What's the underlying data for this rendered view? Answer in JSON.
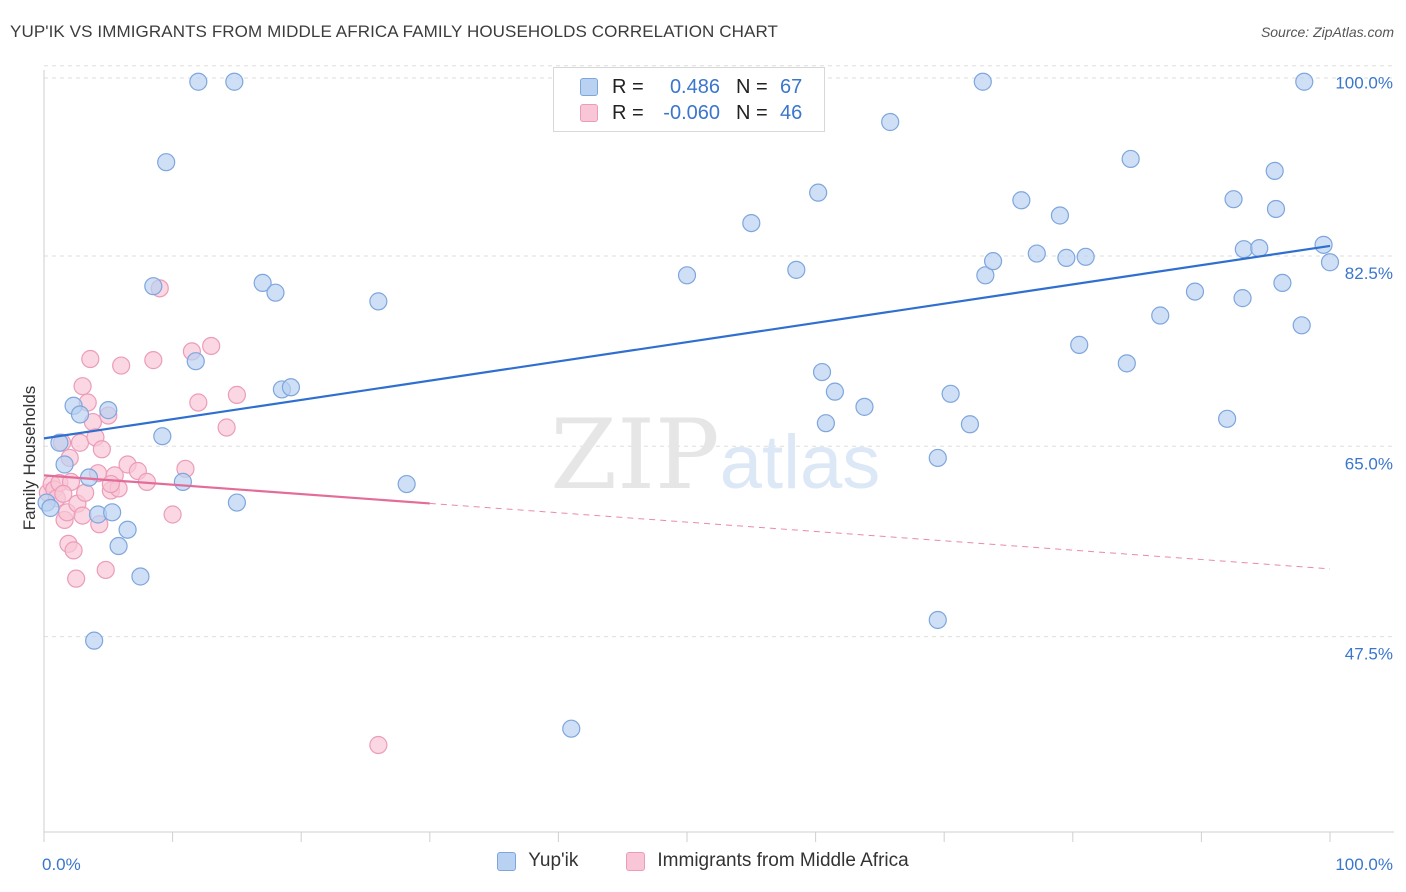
{
  "title": "YUP'IK VS IMMIGRANTS FROM MIDDLE AFRICA FAMILY HOUSEHOLDS CORRELATION CHART",
  "source": "Source: ZipAtlas.com",
  "watermark": {
    "zip": "ZIP",
    "atlas": "atlas"
  },
  "legend": {
    "rows": [
      {
        "r_label": "R =",
        "r_value": "0.486",
        "n_label": "N =",
        "n_value": "67"
      },
      {
        "r_label": "R =",
        "r_value": "-0.060",
        "n_label": "N =",
        "n_value": "46"
      }
    ]
  },
  "colors": {
    "blue_fill": "#b9d2f2",
    "blue_stroke": "#7ea6dd",
    "blue_line": "#2f6fcf",
    "pink_fill": "#f8c6d6",
    "pink_stroke": "#ec9cb8",
    "pink_line": "#e46c98",
    "tick_text": "#3a76cc",
    "grid": "#dedede"
  },
  "chart_data": {
    "type": "scatter",
    "title": "YUP'IK VS IMMIGRANTS FROM MIDDLE AFRICA FAMILY HOUSEHOLDS CORRELATION CHART",
    "xlabel": "",
    "ylabel": "Family Households",
    "xlim": [
      0,
      100
    ],
    "ylim": [
      31,
      102
    ],
    "x_tick_labels": [
      "0.0%",
      "100.0%"
    ],
    "y_ticks": [
      47.5,
      65.0,
      82.5,
      100.0
    ],
    "y_tick_labels": [
      "47.5%",
      "65.0%",
      "82.5%",
      "100.0%"
    ],
    "legend_position": "top-center",
    "series": [
      {
        "name": "Yup'ik",
        "color": "blue",
        "trend": {
          "x": [
            0,
            100
          ],
          "y": [
            67.2,
            84.9
          ],
          "dashed_after": null
        },
        "points": [
          {
            "x": 0.2,
            "y": 61.3
          },
          {
            "x": 1.2,
            "y": 66.8
          },
          {
            "x": 1.6,
            "y": 64.8
          },
          {
            "x": 2.3,
            "y": 70.2
          },
          {
            "x": 2.8,
            "y": 69.4
          },
          {
            "x": 3.5,
            "y": 63.6
          },
          {
            "x": 5.0,
            "y": 69.8
          },
          {
            "x": 4.2,
            "y": 60.2
          },
          {
            "x": 5.3,
            "y": 60.4
          },
          {
            "x": 5.8,
            "y": 57.3
          },
          {
            "x": 6.5,
            "y": 58.8
          },
          {
            "x": 7.5,
            "y": 54.5
          },
          {
            "x": 3.9,
            "y": 48.6
          },
          {
            "x": 8.5,
            "y": 81.2
          },
          {
            "x": 9.2,
            "y": 67.4
          },
          {
            "x": 9.5,
            "y": 92.6
          },
          {
            "x": 10.8,
            "y": 63.2
          },
          {
            "x": 11.8,
            "y": 74.3
          },
          {
            "x": 12.0,
            "y": 100.0
          },
          {
            "x": 14.8,
            "y": 100.0
          },
          {
            "x": 15.0,
            "y": 61.3
          },
          {
            "x": 17.0,
            "y": 81.5
          },
          {
            "x": 18.0,
            "y": 80.6
          },
          {
            "x": 18.5,
            "y": 71.7
          },
          {
            "x": 19.2,
            "y": 71.9
          },
          {
            "x": 26.0,
            "y": 79.8
          },
          {
            "x": 28.2,
            "y": 63.0
          },
          {
            "x": 41.0,
            "y": 40.5
          },
          {
            "x": 50.0,
            "y": 82.2
          },
          {
            "x": 55.0,
            "y": 87.0
          },
          {
            "x": 58.5,
            "y": 82.7
          },
          {
            "x": 60.2,
            "y": 89.8
          },
          {
            "x": 60.5,
            "y": 73.3
          },
          {
            "x": 60.8,
            "y": 68.6
          },
          {
            "x": 61.5,
            "y": 71.5
          },
          {
            "x": 63.8,
            "y": 70.1
          },
          {
            "x": 65.8,
            "y": 96.3
          },
          {
            "x": 69.5,
            "y": 65.4
          },
          {
            "x": 69.5,
            "y": 50.5
          },
          {
            "x": 70.5,
            "y": 71.3
          },
          {
            "x": 72.0,
            "y": 68.5
          },
          {
            "x": 73.0,
            "y": 100.0
          },
          {
            "x": 73.2,
            "y": 82.2
          },
          {
            "x": 73.8,
            "y": 83.5
          },
          {
            "x": 76.0,
            "y": 89.1
          },
          {
            "x": 77.2,
            "y": 84.2
          },
          {
            "x": 79.0,
            "y": 87.7
          },
          {
            "x": 79.5,
            "y": 83.8
          },
          {
            "x": 80.5,
            "y": 75.8
          },
          {
            "x": 81.0,
            "y": 83.9
          },
          {
            "x": 84.5,
            "y": 92.9
          },
          {
            "x": 84.2,
            "y": 74.1
          },
          {
            "x": 86.8,
            "y": 78.5
          },
          {
            "x": 89.5,
            "y": 80.7
          },
          {
            "x": 92.0,
            "y": 69.0
          },
          {
            "x": 92.5,
            "y": 89.2
          },
          {
            "x": 93.3,
            "y": 84.6
          },
          {
            "x": 93.2,
            "y": 80.1
          },
          {
            "x": 94.5,
            "y": 84.7
          },
          {
            "x": 95.7,
            "y": 91.8
          },
          {
            "x": 95.8,
            "y": 88.3
          },
          {
            "x": 96.3,
            "y": 81.5
          },
          {
            "x": 97.8,
            "y": 77.6
          },
          {
            "x": 98.0,
            "y": 100.0
          },
          {
            "x": 99.5,
            "y": 85.0
          },
          {
            "x": 100.0,
            "y": 83.4
          },
          {
            "x": 0.5,
            "y": 60.8
          }
        ]
      },
      {
        "name": "Immigrants from Middle Africa",
        "color": "pink",
        "trend": {
          "x": [
            0,
            100
          ],
          "y": [
            63.8,
            55.2
          ],
          "dashed_after": 30
        },
        "points": [
          {
            "x": 0.3,
            "y": 62.2
          },
          {
            "x": 0.6,
            "y": 63.0
          },
          {
            "x": 0.8,
            "y": 62.5
          },
          {
            "x": 1.0,
            "y": 61.7
          },
          {
            "x": 1.2,
            "y": 63.1
          },
          {
            "x": 1.4,
            "y": 66.8
          },
          {
            "x": 1.6,
            "y": 59.7
          },
          {
            "x": 1.8,
            "y": 60.4
          },
          {
            "x": 1.9,
            "y": 57.5
          },
          {
            "x": 2.0,
            "y": 65.4
          },
          {
            "x": 2.1,
            "y": 63.2
          },
          {
            "x": 2.3,
            "y": 56.9
          },
          {
            "x": 2.5,
            "y": 54.3
          },
          {
            "x": 2.6,
            "y": 61.2
          },
          {
            "x": 2.8,
            "y": 66.8
          },
          {
            "x": 3.0,
            "y": 72.0
          },
          {
            "x": 3.2,
            "y": 62.2
          },
          {
            "x": 3.4,
            "y": 70.5
          },
          {
            "x": 3.6,
            "y": 74.5
          },
          {
            "x": 3.8,
            "y": 68.7
          },
          {
            "x": 4.0,
            "y": 67.3
          },
          {
            "x": 4.2,
            "y": 64.0
          },
          {
            "x": 4.3,
            "y": 59.3
          },
          {
            "x": 4.5,
            "y": 66.2
          },
          {
            "x": 4.8,
            "y": 55.1
          },
          {
            "x": 5.0,
            "y": 69.3
          },
          {
            "x": 5.2,
            "y": 62.4
          },
          {
            "x": 5.5,
            "y": 63.8
          },
          {
            "x": 5.8,
            "y": 62.6
          },
          {
            "x": 6.0,
            "y": 73.9
          },
          {
            "x": 6.5,
            "y": 64.8
          },
          {
            "x": 7.3,
            "y": 64.2
          },
          {
            "x": 8.0,
            "y": 63.2
          },
          {
            "x": 8.5,
            "y": 74.4
          },
          {
            "x": 9.0,
            "y": 81.0
          },
          {
            "x": 10.0,
            "y": 60.2
          },
          {
            "x": 11.0,
            "y": 64.4
          },
          {
            "x": 11.5,
            "y": 75.2
          },
          {
            "x": 12.0,
            "y": 70.5
          },
          {
            "x": 13.0,
            "y": 75.7
          },
          {
            "x": 14.2,
            "y": 68.2
          },
          {
            "x": 15.0,
            "y": 71.2
          },
          {
            "x": 26.0,
            "y": 39.0
          },
          {
            "x": 1.5,
            "y": 62.1
          },
          {
            "x": 3.0,
            "y": 60.1
          },
          {
            "x": 5.2,
            "y": 63.0
          }
        ]
      }
    ]
  }
}
